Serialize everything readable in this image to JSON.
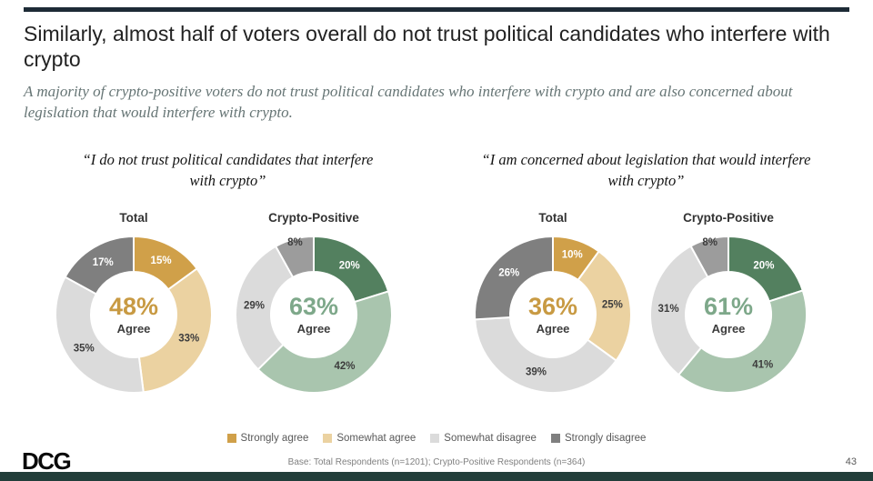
{
  "slide": {
    "title": "Similarly, almost half of voters overall do not trust political candidates who interfere with crypto",
    "subtitle": "A majority of crypto-positive voters do not trust political candidates who interfere with crypto and are also concerned about legislation that would interfere with crypto.",
    "accent_bar_color": "#1d2b36",
    "footer_bar_color": "#223e3a"
  },
  "groups": [
    {
      "quote": "“I do not trust political candidates that interfere with crypto”"
    },
    {
      "quote": "“I am concerned about legislation that would interfere with crypto”"
    }
  ],
  "legend": [
    {
      "label": "Strongly agree",
      "color": "#d0a049"
    },
    {
      "label": "Somewhat agree",
      "color": "#ebd2a1"
    },
    {
      "label": "Somewhat disagree",
      "color": "#dbdbdb"
    },
    {
      "label": "Strongly disagree",
      "color": "#7f7f7f"
    }
  ],
  "footer": {
    "logo": "DCG",
    "base_note": "Base: Total Respondents (n=1201); Crypto-Positive Respondents (n=364)",
    "page_number": "43"
  },
  "chart_data": [
    {
      "type": "pie",
      "title": "Total",
      "question": "“I do not trust political candidates that interfere with crypto”",
      "center_value": "48%",
      "center_label": "Agree",
      "center_color": "#c89a43",
      "legend_position": "bottom",
      "slices": [
        {
          "label": "Strongly agree",
          "value": 15,
          "color": "#d0a049",
          "text_color": "#ffffff",
          "label_radius": 0.77
        },
        {
          "label": "Somewhat agree",
          "value": 33,
          "color": "#ebd2a1",
          "text_color": "#3d3d3d",
          "label_radius": 0.77
        },
        {
          "label": "Somewhat disagree",
          "value": 35,
          "color": "#dbdbdb",
          "text_color": "#3d3d3d",
          "label_radius": 0.77
        },
        {
          "label": "Strongly disagree",
          "value": 17,
          "color": "#7f7f7f",
          "text_color": "#ffffff",
          "label_radius": 0.77
        }
      ]
    },
    {
      "type": "pie",
      "title": "Crypto-Positive",
      "question": "“I do not trust political candidates that interfere with crypto”",
      "center_value": "63%",
      "center_label": "Agree",
      "center_color": "#7ea88a",
      "legend_position": "bottom",
      "slices": [
        {
          "label": "Strongly agree",
          "value": 20,
          "color": "#53805f",
          "text_color": "#ffffff",
          "label_radius": 0.77
        },
        {
          "label": "Somewhat agree",
          "value": 42,
          "color": "#a9c5ae",
          "text_color": "#3d3d3d",
          "label_radius": 0.77
        },
        {
          "label": "Somewhat disagree",
          "value": 29,
          "color": "#dbdbdb",
          "text_color": "#3d3d3d",
          "label_radius": 0.77
        },
        {
          "label": "Strongly disagree",
          "value": 8,
          "color": "#9c9c9c",
          "text_color": "#3d3d3d",
          "label_radius": 0.95
        }
      ]
    },
    {
      "type": "pie",
      "title": "Total",
      "question": "“I am concerned about legislation that would interfere with crypto”",
      "center_value": "36%",
      "center_label": "Agree",
      "center_color": "#c89a43",
      "legend_position": "bottom",
      "slices": [
        {
          "label": "Strongly agree",
          "value": 10,
          "color": "#d0a049",
          "text_color": "#ffffff",
          "label_radius": 0.8
        },
        {
          "label": "Somewhat agree",
          "value": 25,
          "color": "#ebd2a1",
          "text_color": "#3d3d3d",
          "label_radius": 0.77
        },
        {
          "label": "Somewhat disagree",
          "value": 39,
          "color": "#dbdbdb",
          "text_color": "#3d3d3d",
          "label_radius": 0.77
        },
        {
          "label": "Strongly disagree",
          "value": 26,
          "color": "#7f7f7f",
          "text_color": "#ffffff",
          "label_radius": 0.77
        }
      ]
    },
    {
      "type": "pie",
      "title": "Crypto-Positive",
      "question": "“I am concerned about legislation that would interfere with crypto”",
      "center_value": "61%",
      "center_label": "Agree",
      "center_color": "#7ea88a",
      "legend_position": "bottom",
      "slices": [
        {
          "label": "Strongly agree",
          "value": 20,
          "color": "#53805f",
          "text_color": "#ffffff",
          "label_radius": 0.77
        },
        {
          "label": "Somewhat agree",
          "value": 41,
          "color": "#a9c5ae",
          "text_color": "#3d3d3d",
          "label_radius": 0.78
        },
        {
          "label": "Somewhat disagree",
          "value": 31,
          "color": "#dbdbdb",
          "text_color": "#3d3d3d",
          "label_radius": 0.77
        },
        {
          "label": "Strongly disagree",
          "value": 8,
          "color": "#9c9c9c",
          "text_color": "#3d3d3d",
          "label_radius": 0.95
        }
      ]
    }
  ]
}
